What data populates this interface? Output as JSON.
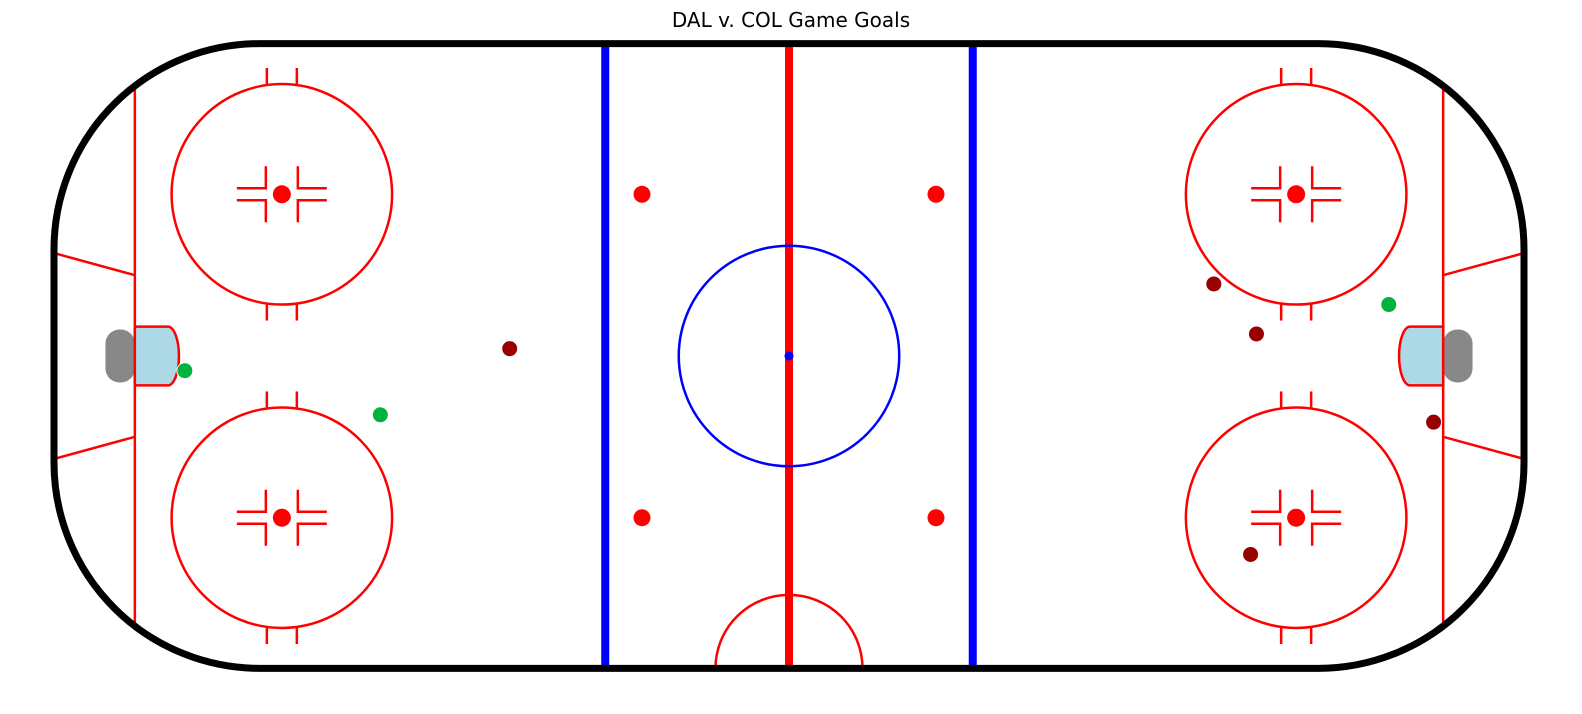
{
  "title": "DAL v. COL Game Goals",
  "colors": {
    "board": "#000000",
    "red_line": "#ff0000",
    "blue_line": "#0000ff",
    "crease": "#add8e6",
    "net": "#888888",
    "team_dark_red": "#990000",
    "team_green": "#00b33c"
  },
  "chart_data": {
    "type": "scatter",
    "title": "DAL v. COL Game Goals",
    "xlim": [
      -100,
      100
    ],
    "ylim": [
      -42.5,
      42.5
    ],
    "xlabel": "",
    "ylabel": "",
    "grid": false,
    "legend": "none",
    "series": [
      {
        "color": "#990000",
        "points": [
          {
            "x": -38.0,
            "y": 1.0
          },
          {
            "x": 57.8,
            "y": 9.8
          },
          {
            "x": 63.6,
            "y": 3.0
          },
          {
            "x": 87.7,
            "y": -9.0
          },
          {
            "x": 62.8,
            "y": -27.0
          }
        ]
      },
      {
        "color": "#00b33c",
        "points": [
          {
            "x": -82.2,
            "y": -2.0
          },
          {
            "x": -55.6,
            "y": -8.0
          },
          {
            "x": 81.6,
            "y": 7.0
          }
        ]
      }
    ]
  }
}
